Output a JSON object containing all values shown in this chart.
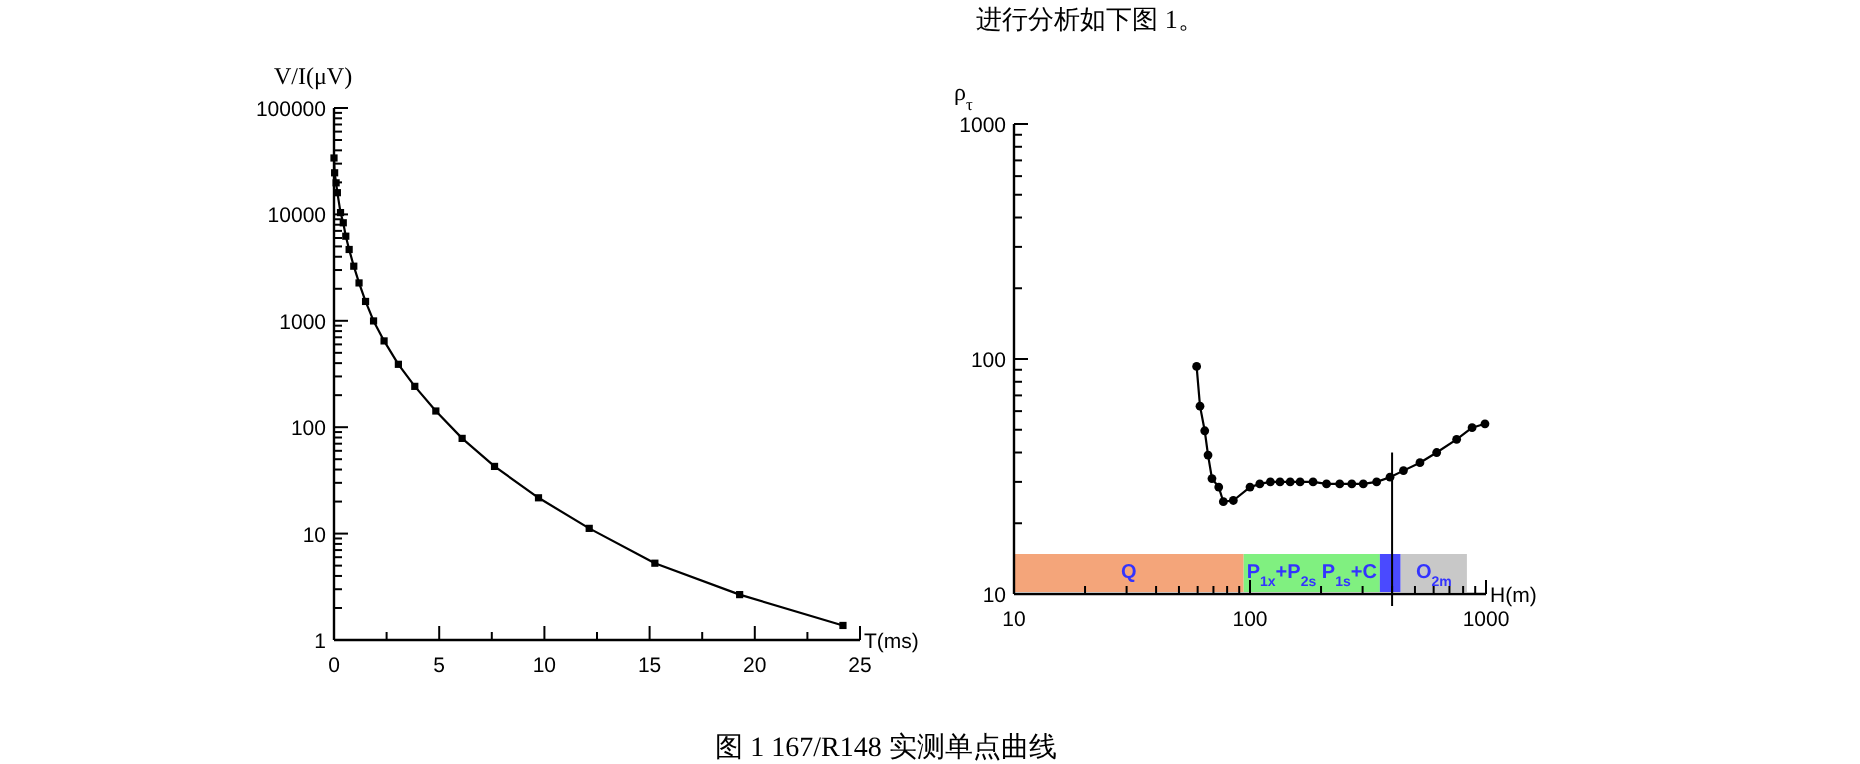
{
  "chart_data": [
    {
      "type": "line",
      "xlabel": "T(ms)",
      "ylabel": "V/I(μV)",
      "log": "y",
      "grid": false,
      "marker": "square",
      "line_style": "solid",
      "xlim": [
        0,
        25
      ],
      "ylim": [
        1,
        100000
      ],
      "xticks": [
        0,
        {
          "value": 2.5,
          "label": null
        },
        5,
        {
          "value": 7.5,
          "label": null
        },
        10,
        {
          "value": 12.5,
          "label": null
        },
        15,
        {
          "value": 17.5,
          "label": null
        },
        20,
        {
          "value": 22.5,
          "label": null
        },
        25
      ],
      "yticks": [
        1,
        {
          "value": 2,
          "label": null
        },
        {
          "value": 3,
          "label": null
        },
        {
          "value": 4,
          "label": null
        },
        {
          "value": 5,
          "label": null
        },
        {
          "value": 6,
          "label": null
        },
        {
          "value": 7,
          "label": null
        },
        {
          "value": 8,
          "label": null
        },
        {
          "value": 9,
          "label": null
        },
        10,
        {
          "value": 20,
          "label": null
        },
        {
          "value": 30,
          "label": null
        },
        {
          "value": 40,
          "label": null
        },
        {
          "value": 50,
          "label": null
        },
        {
          "value": 60,
          "label": null
        },
        {
          "value": 70,
          "label": null
        },
        {
          "value": 80,
          "label": null
        },
        {
          "value": 90,
          "label": null
        },
        100,
        {
          "value": 200,
          "label": null
        },
        {
          "value": 300,
          "label": null
        },
        {
          "value": 400,
          "label": null
        },
        {
          "value": 500,
          "label": null
        },
        {
          "value": 600,
          "label": null
        },
        {
          "value": 700,
          "label": null
        },
        {
          "value": 800,
          "label": null
        },
        {
          "value": 900,
          "label": null
        },
        1000,
        {
          "value": 2000,
          "label": null
        },
        {
          "value": 3000,
          "label": null
        },
        {
          "value": 4000,
          "label": null
        },
        {
          "value": 5000,
          "label": null
        },
        {
          "value": 6000,
          "label": null
        },
        {
          "value": 7000,
          "label": null
        },
        {
          "value": 8000,
          "label": null
        },
        {
          "value": 9000,
          "label": null
        },
        10000,
        {
          "value": 20000,
          "label": null
        },
        {
          "value": 30000,
          "label": null
        },
        {
          "value": 40000,
          "label": null
        },
        {
          "value": 50000,
          "label": null
        },
        {
          "value": 60000,
          "label": null
        },
        {
          "value": 70000,
          "label": null
        },
        {
          "value": 80000,
          "label": null
        },
        {
          "value": 90000,
          "label": null
        },
        100000
      ],
      "series": [
        {
          "color": "#000000",
          "x": [
            0,
            0.03,
            0.1,
            0.16,
            0.31,
            0.44,
            0.56,
            0.72,
            0.94,
            1.19,
            1.5,
            1.88,
            2.38,
            3.06,
            3.84,
            4.84,
            6.09,
            7.63,
            9.72,
            12.13,
            15.25,
            19.28,
            24.19
          ],
          "values": [
            33900,
            24600,
            19800,
            16000,
            10400,
            8340,
            6240,
            4680,
            3260,
            2270,
            1520,
            997,
            647,
            390,
            242,
            142,
            78.5,
            42.8,
            21.7,
            11.2,
            5.27,
            2.67,
            1.37
          ]
        }
      ],
      "annotations": [
        "进行分析如下图 1。",
        "图 1    167/R148 实测单点曲线"
      ]
    },
    {
      "type": "line",
      "xlabel": "H(m)",
      "ylabel": "ρ$_{τ}$",
      "log": "xy",
      "grid": false,
      "marker": "circle",
      "line_style": "solid",
      "xlim": [
        10,
        1000
      ],
      "ylim": [
        10,
        1000
      ],
      "xticks": [
        10,
        {
          "value": 20,
          "label": null
        },
        {
          "value": 30,
          "label": null
        },
        {
          "value": 40,
          "label": null
        },
        {
          "value": 50,
          "label": null
        },
        {
          "value": 60,
          "label": null
        },
        {
          "value": 70,
          "label": null
        },
        {
          "value": 80,
          "label": null
        },
        {
          "value": 90,
          "label": null
        },
        100,
        {
          "value": 200,
          "label": null
        },
        {
          "value": 300,
          "label": null
        },
        {
          "value": 400,
          "label": null
        },
        {
          "value": 500,
          "label": null
        },
        {
          "value": 600,
          "label": null
        },
        {
          "value": 700,
          "label": null
        },
        {
          "value": 800,
          "label": null
        },
        {
          "value": 900,
          "label": null
        },
        1000
      ],
      "yticks": [
        10,
        {
          "value": 20,
          "label": null
        },
        {
          "value": 30,
          "label": null
        },
        {
          "value": 40,
          "label": null
        },
        {
          "value": 50,
          "label": null
        },
        {
          "value": 60,
          "label": null
        },
        {
          "value": 70,
          "label": null
        },
        {
          "value": 80,
          "label": null
        },
        {
          "value": 90,
          "label": null
        },
        100,
        {
          "value": 200,
          "label": null
        },
        {
          "value": 300,
          "label": null
        },
        {
          "value": 400,
          "label": null
        },
        {
          "value": 500,
          "label": null
        },
        {
          "value": 600,
          "label": null
        },
        {
          "value": 700,
          "label": null
        },
        {
          "value": 800,
          "label": null
        },
        {
          "value": 900,
          "label": null
        },
        1000
      ],
      "series": [
        {
          "color": "#000000",
          "x": [
            59.4,
            61.4,
            64.3,
            66.4,
            69,
            73.7,
            77.1,
            85,
            100,
            110,
            122,
            134,
            148,
            163,
            185,
            211,
            240,
            270,
            302,
            344,
            392,
            447,
            525,
            618,
            751,
            873,
            990
          ],
          "values": [
            93,
            63,
            49.5,
            39,
            31,
            28.5,
            24.7,
            25,
            28.5,
            29.4,
            30,
            30,
            30,
            30,
            30,
            29.4,
            29.4,
            29.4,
            29.4,
            30,
            31.4,
            33.5,
            36.2,
            40,
            45.5,
            51,
            53
          ]
        }
      ],
      "ref_lines": [
        {
          "axis": "x",
          "value": 400,
          "color": "#000000"
        }
      ],
      "bands": [
        {
          "axis": "x",
          "from": 10,
          "to": 94,
          "label": "Q",
          "color": "#f4a57a"
        },
        {
          "axis": "x",
          "from": 94,
          "to": 355,
          "label": "P$_{1x}$+P$_{2s}$  P$_{1s}$+C",
          "color": "#80f080"
        },
        {
          "axis": "x",
          "from": 355,
          "to": 435,
          "label": null,
          "color": "#4a4aff"
        },
        {
          "axis": "x",
          "from": 435,
          "to": 830,
          "label": "O$_{2m}$",
          "color": "#c8c8c8"
        }
      ]
    }
  ]
}
